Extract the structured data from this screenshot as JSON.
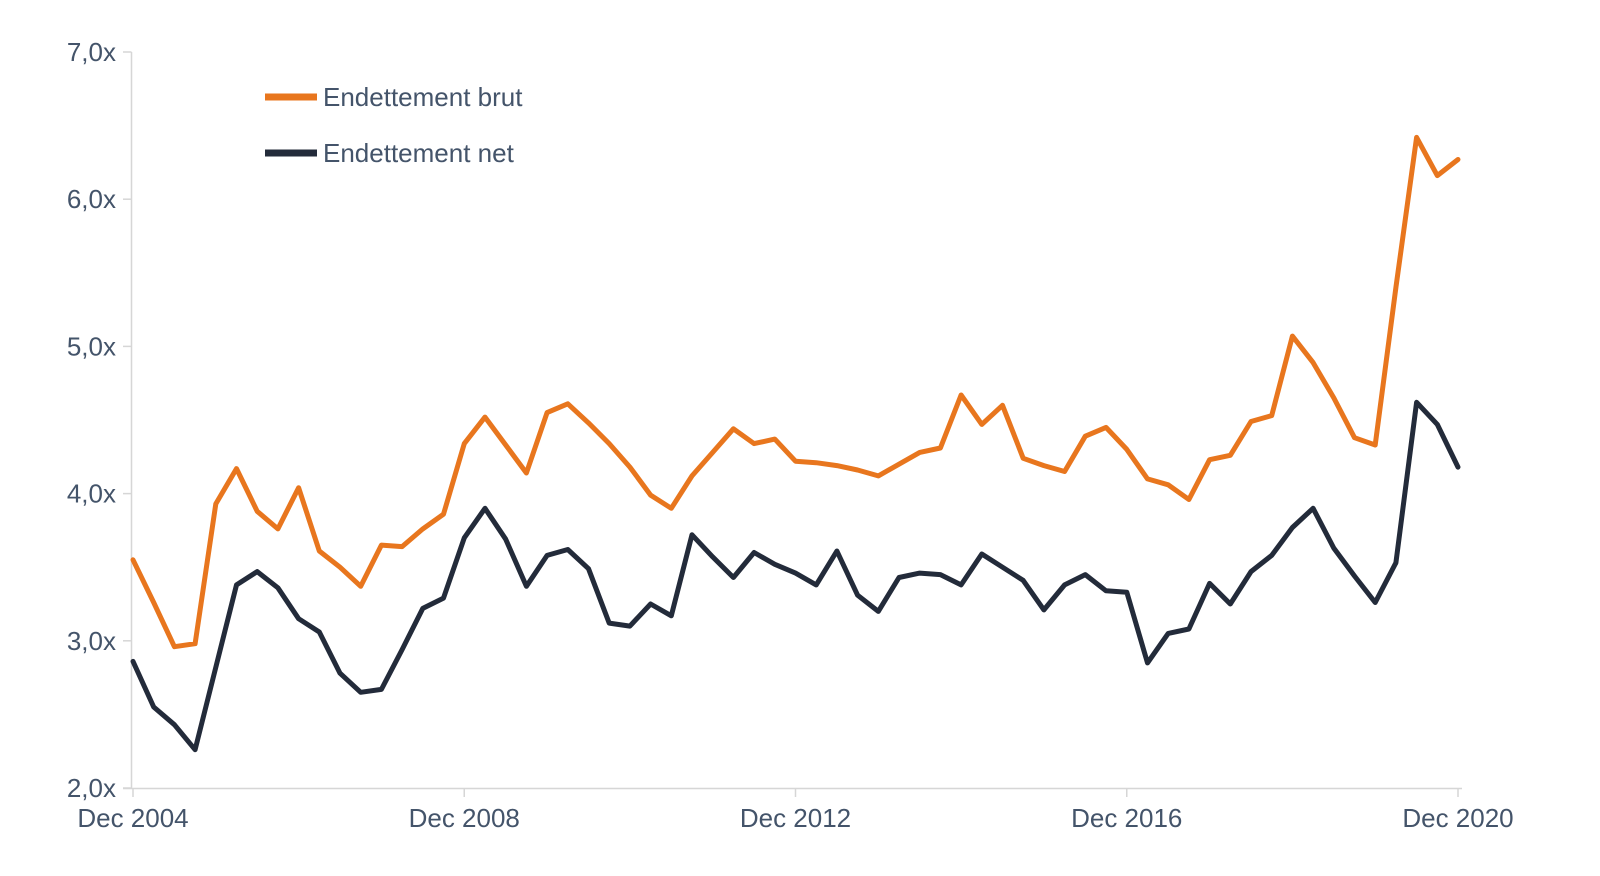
{
  "colors": {
    "background": "#FFFFFF",
    "axis_line": "#D6D6D6",
    "tick_label_text": "#44546A",
    "brut_orange": "#E8761E",
    "net_navy": "#232B3A"
  },
  "chart_data": {
    "type": "line",
    "title": "",
    "xlabel": "",
    "ylabel": "",
    "grid": false,
    "legend_position": "top-left",
    "x_start": "Dec 2004",
    "x_end": "Dec 2020",
    "frequency": "quarterly",
    "n_points": 65,
    "ylim": [
      2.0,
      7.0
    ],
    "y_ticks": [
      {
        "value": 2.0,
        "label": "2,0x"
      },
      {
        "value": 3.0,
        "label": "3,0x"
      },
      {
        "value": 4.0,
        "label": "4,0x"
      },
      {
        "value": 5.0,
        "label": "5,0x"
      },
      {
        "value": 6.0,
        "label": "6,0x"
      },
      {
        "value": 7.0,
        "label": "7,0x"
      }
    ],
    "x_ticks": [
      {
        "index": 0,
        "label": "Dec 2004"
      },
      {
        "index": 16,
        "label": "Dec 2008"
      },
      {
        "index": 32,
        "label": "Dec 2012"
      },
      {
        "index": 48,
        "label": "Dec 2016"
      },
      {
        "index": 64,
        "label": "Dec 2020"
      }
    ],
    "series": [
      {
        "name": "Endettement brut",
        "color": "#E8761E",
        "values": [
          3.55,
          3.26,
          2.96,
          2.98,
          3.93,
          4.17,
          3.88,
          3.76,
          4.04,
          3.61,
          3.5,
          3.37,
          3.65,
          3.64,
          3.76,
          3.86,
          4.34,
          4.52,
          4.33,
          4.14,
          4.55,
          4.61,
          4.48,
          4.34,
          4.18,
          3.99,
          3.9,
          4.12,
          4.28,
          4.44,
          4.34,
          4.37,
          4.22,
          4.21,
          4.19,
          4.16,
          4.12,
          4.2,
          4.28,
          4.31,
          4.67,
          4.47,
          4.6,
          4.24,
          4.19,
          4.15,
          4.39,
          4.45,
          4.3,
          4.1,
          4.06,
          3.96,
          4.23,
          4.26,
          4.49,
          4.53,
          5.07,
          4.89,
          4.65,
          4.38,
          4.33,
          5.4,
          6.42,
          6.16,
          6.27
        ]
      },
      {
        "name": "Endettement net",
        "color": "#232B3A",
        "values": [
          2.86,
          2.55,
          2.43,
          2.26,
          2.82,
          3.38,
          3.47,
          3.36,
          3.15,
          3.06,
          2.78,
          2.65,
          2.67,
          2.94,
          3.22,
          3.29,
          3.7,
          3.9,
          3.69,
          3.37,
          3.58,
          3.62,
          3.49,
          3.12,
          3.1,
          3.25,
          3.17,
          3.72,
          3.57,
          3.43,
          3.6,
          3.52,
          3.46,
          3.38,
          3.61,
          3.31,
          3.2,
          3.43,
          3.46,
          3.45,
          3.38,
          3.59,
          3.5,
          3.41,
          3.21,
          3.38,
          3.45,
          3.34,
          3.33,
          2.85,
          3.05,
          3.08,
          3.39,
          3.25,
          3.47,
          3.58,
          3.77,
          3.9,
          3.63,
          3.44,
          3.26,
          3.53,
          4.62,
          4.47,
          4.18
        ]
      }
    ]
  }
}
